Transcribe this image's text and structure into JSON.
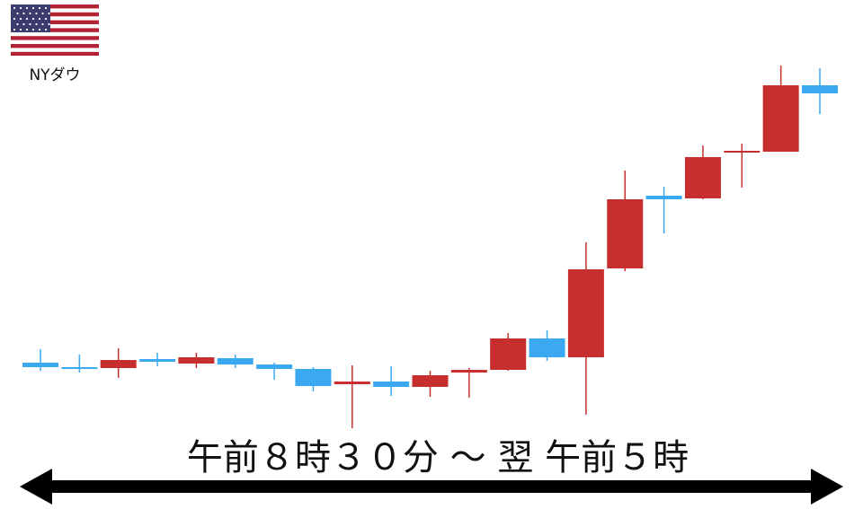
{
  "chart_data": {
    "type": "candlestick",
    "label": "NYダウ",
    "caption": "午前８時３０分 ～ 翌 午前５時",
    "up_color": "#c62f2d",
    "down_color": "#3aa9f2",
    "open": [
      163,
      158,
      157,
      167,
      162,
      168,
      161,
      156,
      139,
      142,
      136,
      152,
      155,
      190,
      169,
      268,
      349,
      346,
      397,
      398,
      472
    ],
    "high": [
      178,
      172,
      179,
      174,
      174,
      172,
      163,
      158,
      160,
      159,
      154,
      157,
      196,
      199,
      297,
      377,
      359,
      405,
      407,
      494,
      491
    ],
    "low": [
      154,
      152,
      146,
      159,
      157,
      157,
      144,
      131,
      90,
      126,
      125,
      124,
      154,
      165,
      105,
      265,
      307,
      345,
      358,
      398,
      440
    ],
    "close": [
      158,
      156,
      166,
      164,
      169,
      161,
      156,
      137,
      142,
      136,
      149,
      155,
      190,
      169,
      267,
      345,
      345,
      392,
      399,
      472,
      463
    ]
  }
}
